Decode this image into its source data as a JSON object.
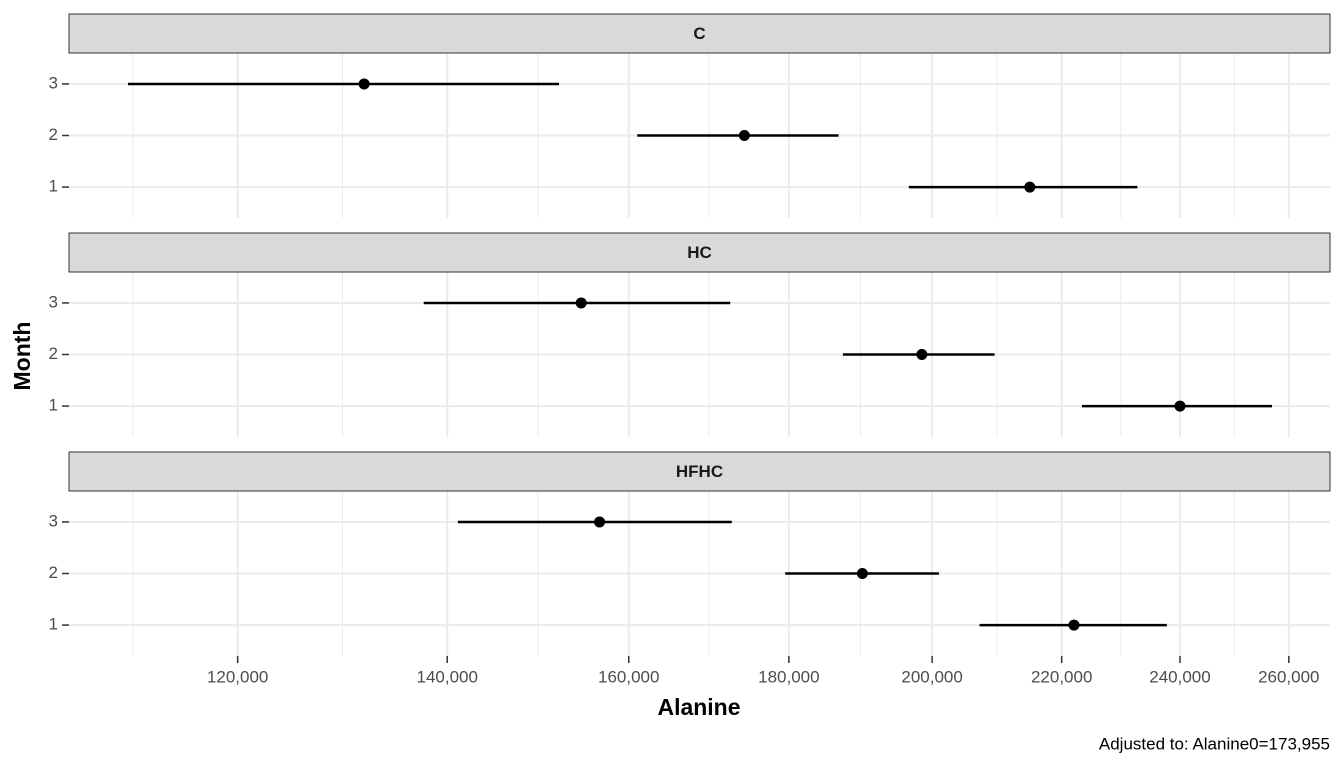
{
  "chart_data": {
    "type": "errorbar",
    "x_label": "Alanine",
    "y_label": "Month",
    "caption": "Adjusted to: Alanine0=173,955",
    "x_log": true,
    "xlim": [
      106000,
      268000
    ],
    "xticks": [
      {
        "value": 120000,
        "label": "120,000"
      },
      {
        "value": 140000,
        "label": "140,000"
      },
      {
        "value": 160000,
        "label": "160,000"
      },
      {
        "value": 180000,
        "label": "180,000"
      },
      {
        "value": 200000,
        "label": "200,000"
      },
      {
        "value": 220000,
        "label": "220,000"
      },
      {
        "value": 240000,
        "label": "240,000"
      },
      {
        "value": 260000,
        "label": "260,000"
      }
    ],
    "ylim": [
      0.4,
      3.6
    ],
    "yticks": [
      1,
      2,
      3
    ],
    "grid": true,
    "color": "#000000",
    "panels": [
      {
        "strip": "C",
        "y": [
          1,
          2,
          3
        ],
        "values": [
          214900,
          174200,
          131700
        ],
        "lower": [
          196600,
          161000,
          110700
        ],
        "upper": [
          232600,
          186700,
          152000
        ]
      },
      {
        "strip": "HC",
        "y": [
          1,
          2,
          3
        ],
        "values": [
          240000,
          198500,
          154500
        ],
        "lower": [
          223300,
          187300,
          137600
        ],
        "upper": [
          256800,
          209400,
          172400
        ]
      },
      {
        "strip": "HFHC",
        "y": [
          1,
          2,
          3
        ],
        "values": [
          222000,
          190000,
          156600
        ],
        "lower": [
          207100,
          179500,
          141100
        ],
        "upper": [
          237700,
          201000,
          172600
        ]
      }
    ]
  }
}
